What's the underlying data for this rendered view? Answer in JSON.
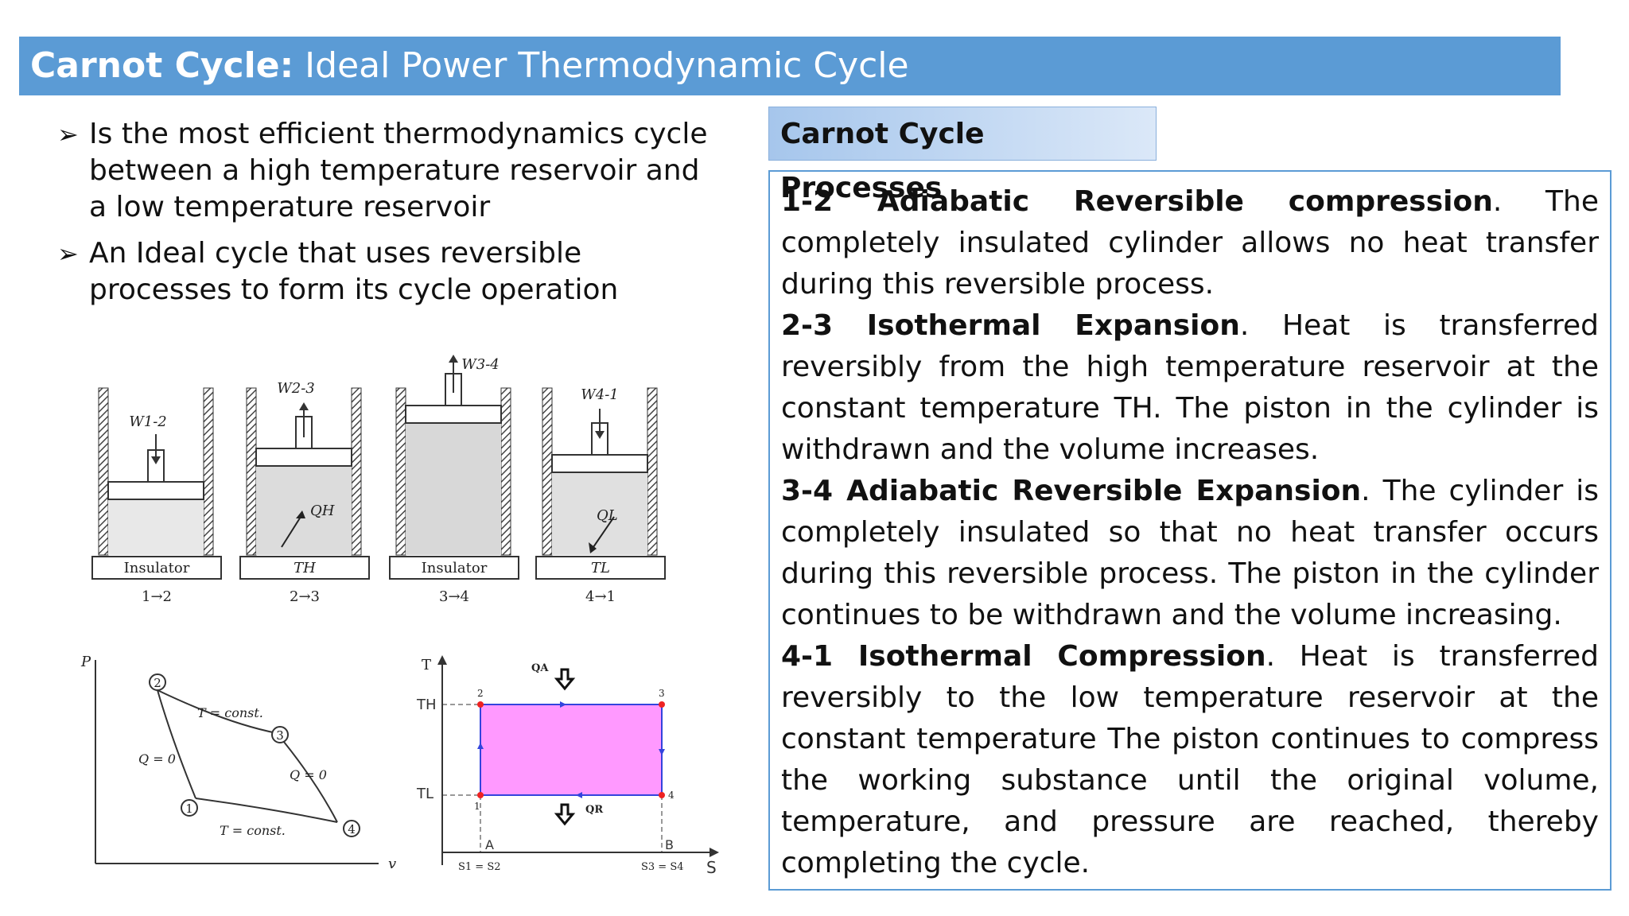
{
  "title": {
    "bold": "Carnot Cycle:",
    "rest": " Ideal Power Thermodynamic Cycle"
  },
  "bullets": [
    "Is the most efficient thermodynamics cycle between a high temperature reservoir and a low temperature reservoir",
    "An Ideal cycle that uses reversible processes to form its cycle operation"
  ],
  "processes_heading": "Carnot Cycle Processes",
  "processes": [
    {
      "head": "1-2 Adiabatic Reversible compression",
      "body": ". The completely insulated cylinder allows no heat transfer during this reversible process."
    },
    {
      "head": "2-3 Isothermal Expansion",
      "body": ". Heat is transferred reversibly from the high temperature reservoir at the constant temperature TH. The piston in the cylinder is withdrawn and the volume increases."
    },
    {
      "head": "3-4 Adiabatic Reversible Expansion",
      "body": ". The cylinder is completely insulated so that no heat transfer occurs during this reversible process. The piston in the cylinder continues to be withdrawn and the volume increasing."
    },
    {
      "head": "4-1 Isothermal Compression",
      "body": ". Heat is transferred reversibly to the low temperature reservoir at the constant temperature The piston continues to compress the working substance until the original volume, temperature, and pressure are reached, thereby completing the cycle."
    }
  ],
  "cylinders": [
    {
      "work": "W1-2",
      "base": "Insulator",
      "step": "1→2"
    },
    {
      "work": "W2-3",
      "heat": "QH",
      "base": "TH",
      "step": "2→3"
    },
    {
      "work": "W3-4",
      "base": "Insulator",
      "step": "3→4"
    },
    {
      "work": "W4-1",
      "heat": "QL",
      "base": "TL",
      "step": "4→1"
    }
  ],
  "pv": {
    "y_axis": "P",
    "x_axis": "v",
    "points": [
      "2",
      "3",
      "1",
      "4"
    ],
    "labels": [
      "T = const.",
      "Q = 0",
      "Q = 0",
      "T = const."
    ]
  },
  "ts": {
    "y_axis": "T",
    "x_axis": "S",
    "th": "TH",
    "tl": "TL",
    "qa": "QA",
    "qr": "QR",
    "corners": [
      "1",
      "2",
      "3",
      "4"
    ],
    "a": "A",
    "b": "B",
    "s_left": "S1 = S2",
    "s_right": "S3 = S4",
    "fill": "#ff99ff",
    "edge": "#3344dd",
    "dot": "#ee2222"
  }
}
